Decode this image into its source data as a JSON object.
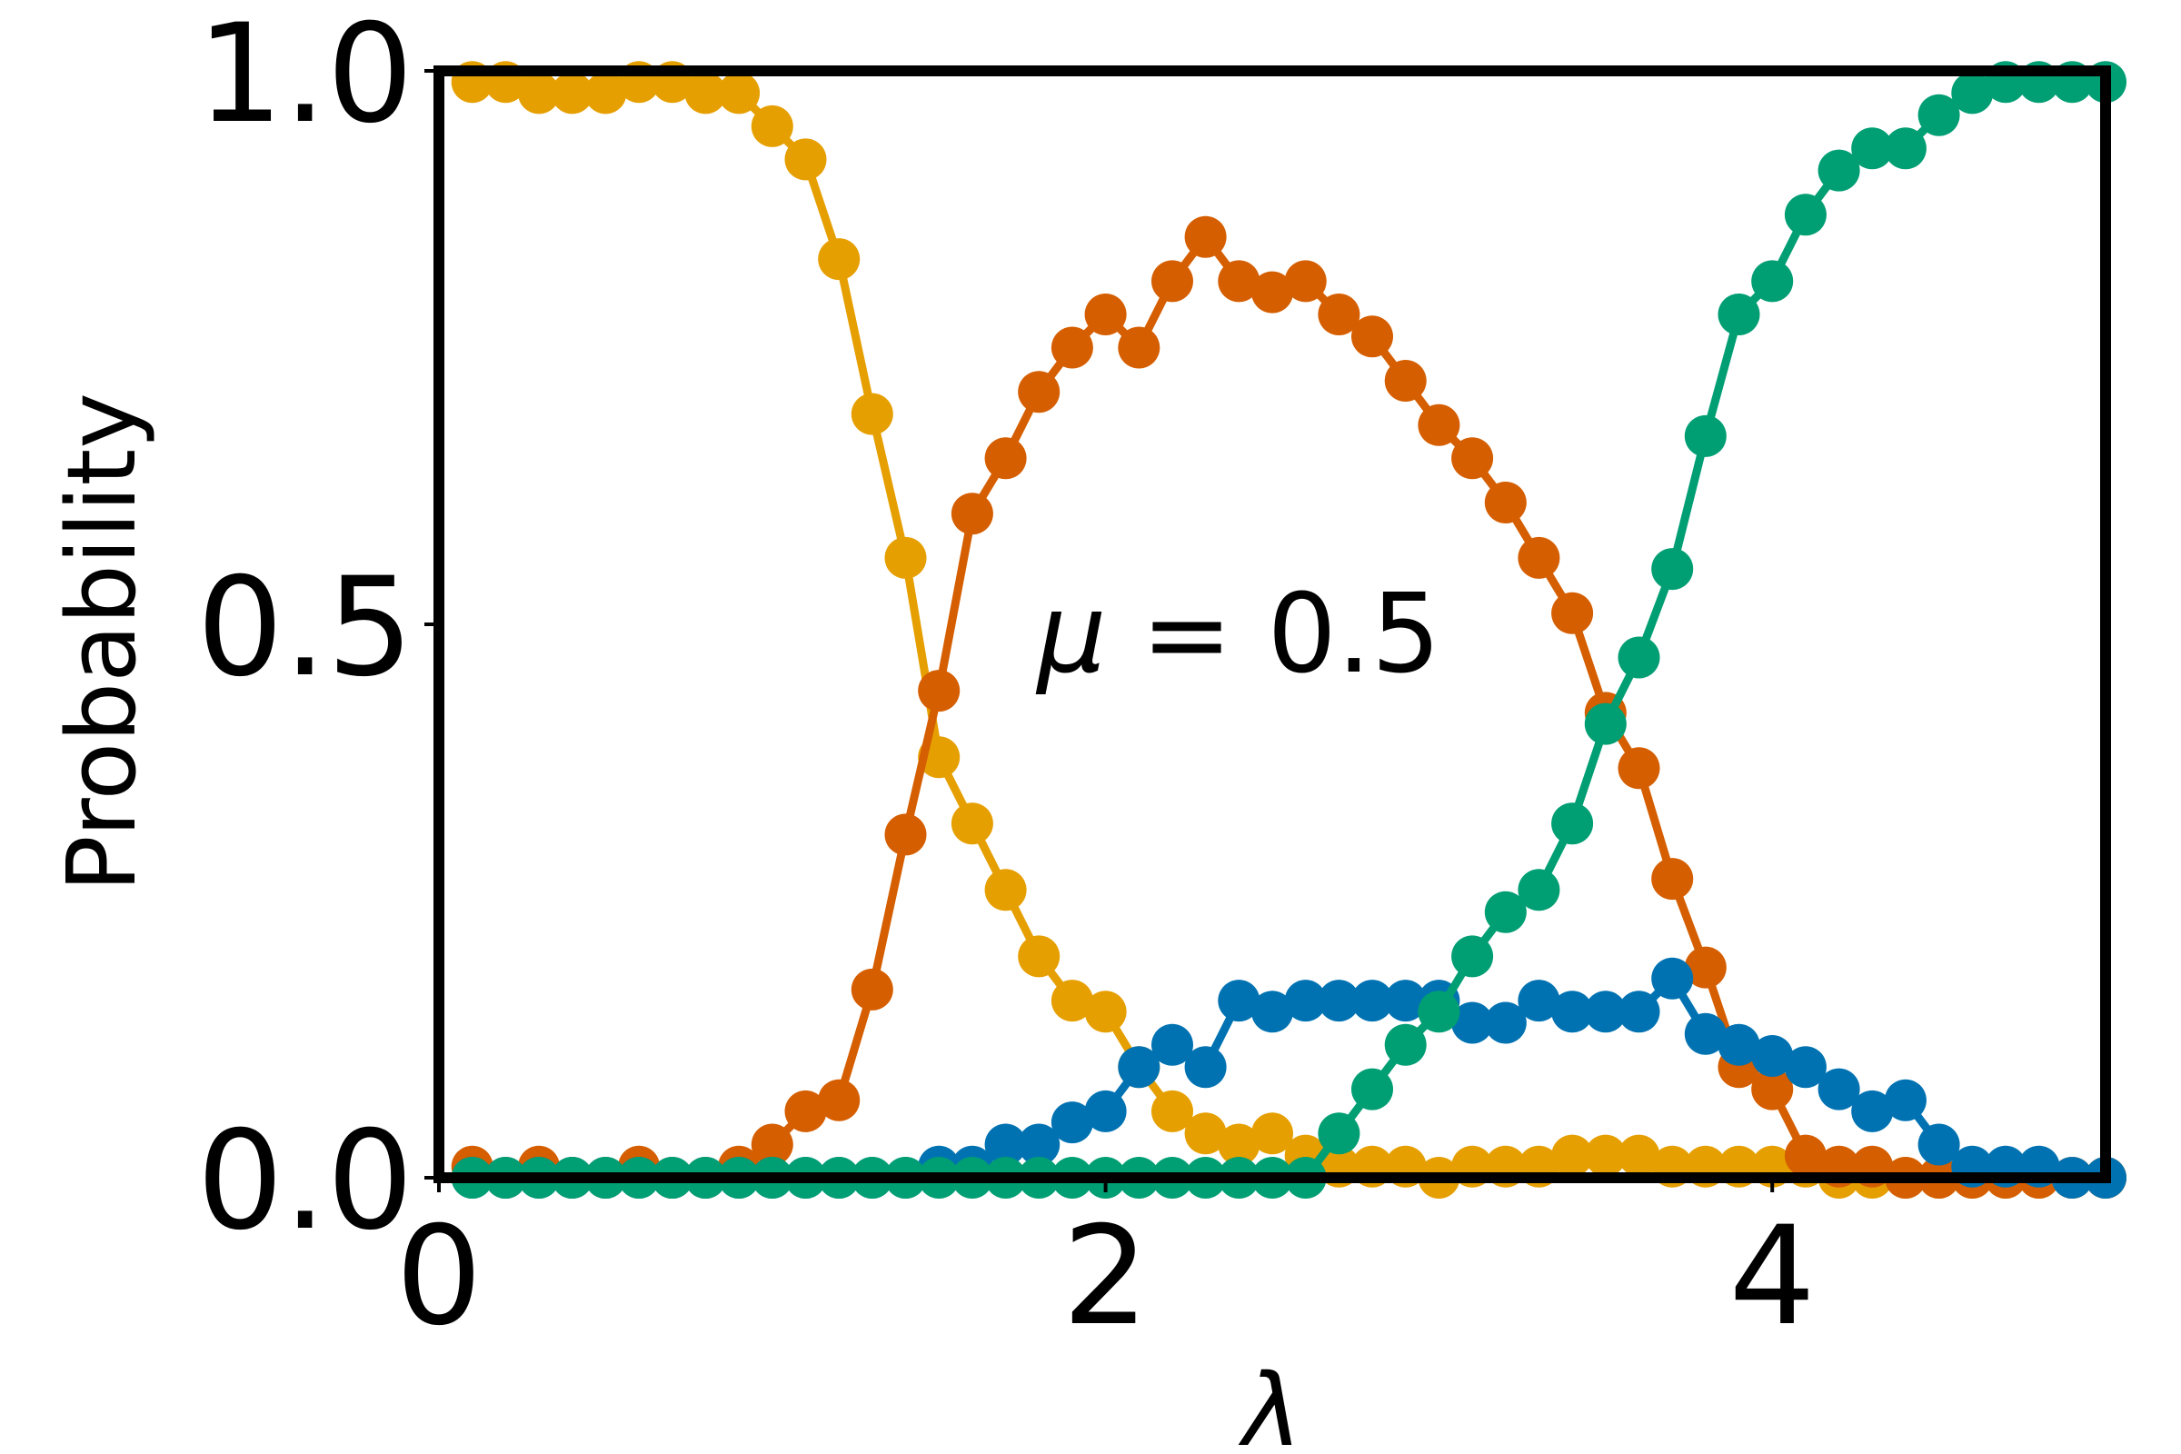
{
  "chart_data": {
    "type": "line",
    "xlabel": "λ",
    "ylabel": "Probability",
    "xlim": [
      0,
      5
    ],
    "ylim": [
      0,
      1
    ],
    "x_ticks": [
      {
        "value": 0,
        "label": "0"
      },
      {
        "value": 2,
        "label": "2"
      },
      {
        "value": 4,
        "label": "4"
      }
    ],
    "y_ticks": [
      {
        "value": 0,
        "label": "0.0"
      },
      {
        "value": 0.5,
        "label": "0.5"
      },
      {
        "value": 1,
        "label": "1.0"
      }
    ],
    "grid": false,
    "legend": "none",
    "annotation": {
      "symbol": "μ",
      "text": " = 0.5",
      "x": 2.4,
      "y": 0.49
    },
    "x": [
      0.1,
      0.2,
      0.3,
      0.4,
      0.5,
      0.6,
      0.7,
      0.8,
      0.9,
      1.0,
      1.1,
      1.2,
      1.3,
      1.4,
      1.5,
      1.6,
      1.7,
      1.8,
      1.9,
      2.0,
      2.1,
      2.2,
      2.3,
      2.4,
      2.5,
      2.6,
      2.7,
      2.8,
      2.9,
      3.0,
      3.1,
      3.2,
      3.3,
      3.4,
      3.5,
      3.6,
      3.7,
      3.8,
      3.9,
      4.0,
      4.1,
      4.2,
      4.3,
      4.4,
      4.5,
      4.6,
      4.7,
      4.8,
      4.9,
      5.0
    ],
    "series": [
      {
        "color": "#E69F00",
        "values": [
          0.99,
          0.99,
          0.98,
          0.98,
          0.98,
          0.99,
          0.99,
          0.98,
          0.98,
          0.95,
          0.92,
          0.83,
          0.69,
          0.56,
          0.38,
          0.32,
          0.26,
          0.2,
          0.16,
          0.15,
          0.1,
          0.06,
          0.04,
          0.03,
          0.04,
          0.02,
          0.01,
          0.01,
          0.01,
          0.0,
          0.01,
          0.01,
          0.01,
          0.02,
          0.02,
          0.02,
          0.01,
          0.01,
          0.01,
          0.01,
          0.01,
          0.0,
          0.0,
          0.0,
          0.0,
          0.0,
          0.0,
          0.0,
          0.0,
          0.0
        ]
      },
      {
        "color": "#D55E00",
        "values": [
          0.01,
          0.0,
          0.01,
          0.0,
          0.0,
          0.01,
          0.0,
          0.0,
          0.01,
          0.03,
          0.06,
          0.07,
          0.17,
          0.31,
          0.44,
          0.6,
          0.65,
          0.71,
          0.75,
          0.78,
          0.75,
          0.81,
          0.85,
          0.81,
          0.8,
          0.81,
          0.78,
          0.76,
          0.72,
          0.68,
          0.65,
          0.61,
          0.56,
          0.51,
          0.42,
          0.37,
          0.27,
          0.19,
          0.1,
          0.08,
          0.02,
          0.01,
          0.01,
          0.0,
          0.0,
          0.0,
          0.0,
          0.0,
          0.0,
          0.0
        ]
      },
      {
        "color": "#0072B2",
        "values": [
          0.0,
          0.0,
          0.0,
          0.0,
          0.0,
          0.0,
          0.0,
          0.0,
          0.0,
          0.0,
          0.0,
          0.0,
          0.0,
          0.0,
          0.01,
          0.01,
          0.03,
          0.03,
          0.05,
          0.06,
          0.1,
          0.12,
          0.1,
          0.16,
          0.15,
          0.16,
          0.16,
          0.16,
          0.16,
          0.16,
          0.14,
          0.14,
          0.16,
          0.15,
          0.15,
          0.15,
          0.18,
          0.13,
          0.12,
          0.11,
          0.1,
          0.08,
          0.06,
          0.07,
          0.03,
          0.01,
          0.01,
          0.01,
          0.0,
          0.0
        ]
      },
      {
        "color": "#009E73",
        "values": [
          0.0,
          0.0,
          0.0,
          0.0,
          0.0,
          0.0,
          0.0,
          0.0,
          0.0,
          0.0,
          0.0,
          0.0,
          0.0,
          0.0,
          0.0,
          0.0,
          0.0,
          0.0,
          0.0,
          0.0,
          0.0,
          0.0,
          0.0,
          0.0,
          0.0,
          0.0,
          0.04,
          0.08,
          0.12,
          0.15,
          0.2,
          0.24,
          0.26,
          0.32,
          0.41,
          0.47,
          0.55,
          0.67,
          0.78,
          0.81,
          0.87,
          0.91,
          0.93,
          0.93,
          0.96,
          0.98,
          0.99,
          0.99,
          0.99,
          0.99
        ]
      }
    ]
  }
}
